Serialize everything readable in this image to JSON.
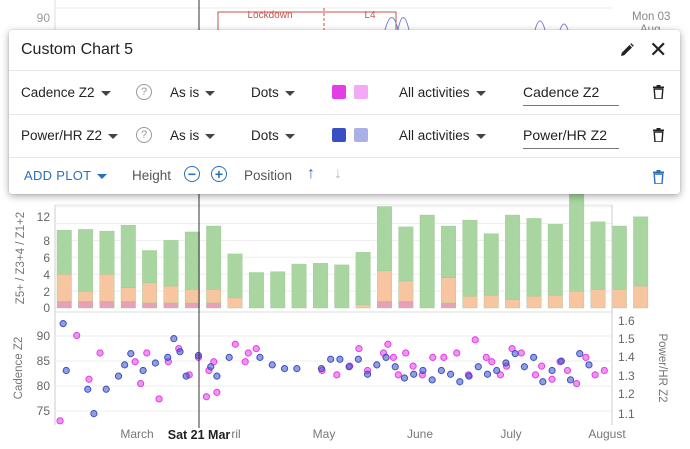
{
  "top_chart": {
    "y_ticks": [
      "90"
    ],
    "annotations": [
      "Lockdown",
      "L4"
    ],
    "date_label": [
      "Mon 03",
      "Aug"
    ]
  },
  "bar_chart": {
    "y_axis_label": "Z5+ / Z3+4 / Z1+2",
    "y_ticks": [
      "0",
      "2",
      "4",
      "6",
      "8",
      "10",
      "12"
    ]
  },
  "dot_chart": {
    "left_axis_label": "Cadence Z2",
    "left_ticks": [
      "75",
      "80",
      "85",
      "90"
    ],
    "right_axis_label": "Power/HR Z2",
    "right_ticks": [
      "1.1",
      "1.2",
      "1.3",
      "1.4",
      "1.5",
      "1.6"
    ]
  },
  "x_axis": {
    "labels": [
      "March",
      "ril",
      "May",
      "June",
      "July",
      "August"
    ],
    "cursor_label": "Sat 21 Mar"
  },
  "panel": {
    "title": "Custom Chart 5",
    "edit_icon": "pencil-icon",
    "close_icon": "close-icon",
    "rows": [
      {
        "metric": "Cadence Z2",
        "transform": "As is",
        "style": "Dots",
        "color_primary": "#e23de6",
        "color_secondary": "#f4a9f6",
        "filter": "All activities",
        "name": "Cadence Z2"
      },
      {
        "metric": "Power/HR Z2",
        "transform": "As is",
        "style": "Dots",
        "color_primary": "#3a4fc4",
        "color_secondary": "#a9b0e6",
        "filter": "All activities",
        "name": "Power/HR Z2"
      }
    ],
    "footer": {
      "add_plot": "ADD PLOT",
      "height": "Height",
      "position": "Position"
    }
  },
  "chart_data": [
    {
      "type": "bar",
      "stacked": true,
      "ylim": [
        0,
        14
      ],
      "series": [
        {
          "name": "Z5+",
          "color": "#e8a0b8",
          "values": [
            0.8,
            0.8,
            0.8,
            0.8,
            0.6,
            0.6,
            0.6,
            0.6,
            0,
            0,
            0,
            0,
            0,
            0,
            0,
            0.8,
            0.8,
            0,
            0.6,
            0,
            0,
            0,
            0,
            0,
            0,
            0,
            0,
            0
          ]
        },
        {
          "name": "Z3+4",
          "color": "#f7c59f",
          "values": [
            3.2,
            1.2,
            3.2,
            1.6,
            2.4,
            2.0,
            1.6,
            1.6,
            1.2,
            0,
            0,
            0,
            0,
            0,
            0.4,
            3.6,
            2.4,
            0,
            3.0,
            1.4,
            1.5,
            1.0,
            1.4,
            1.5,
            2.0,
            2.2,
            2.2,
            2.6
          ]
        },
        {
          "name": "Z1+2",
          "color": "#a8d5a0",
          "values": [
            5.2,
            7.3,
            5.1,
            7.4,
            3.8,
            5.4,
            6.8,
            7.5,
            5.2,
            4.2,
            4.3,
            5.2,
            5.3,
            5.1,
            6.2,
            7.6,
            6.4,
            11.0,
            6.1,
            9.0,
            7.3,
            10.0,
            9.2,
            8.4,
            12.0,
            8.0,
            7.5,
            8.2
          ]
        }
      ]
    },
    {
      "type": "scatter",
      "series": [
        {
          "name": "Cadence Z2",
          "color": "#e23de6",
          "ylim": [
            73,
            97
          ],
          "points": [
            [
              0.05,
              73.5
            ],
            [
              0.32,
              93
            ],
            [
              0.7,
              89
            ],
            [
              0.52,
              83
            ],
            [
              1.27,
              87
            ],
            [
              1.36,
              82
            ],
            [
              1.46,
              89
            ],
            [
              1.66,
              78.5
            ],
            [
              1.81,
              87
            ],
            [
              1.98,
              90
            ],
            [
              2.15,
              84
            ],
            [
              2.3,
              88
            ],
            [
              2.43,
              79
            ],
            [
              2.47,
              85
            ],
            [
              2.55,
              87
            ],
            [
              2.6,
              80
            ],
            [
              2.9,
              91
            ],
            [
              3.06,
              87
            ],
            [
              3.11,
              89
            ],
            [
              3.24,
              90
            ],
            [
              4.31,
              85
            ],
            [
              4.55,
              84
            ],
            [
              4.76,
              86
            ],
            [
              4.91,
              90
            ],
            [
              5.05,
              85
            ],
            [
              5.31,
              89
            ],
            [
              5.38,
              91
            ],
            [
              5.47,
              88
            ],
            [
              5.55,
              84
            ],
            [
              5.67,
              89
            ],
            [
              5.79,
              86
            ],
            [
              5.94,
              84
            ],
            [
              6.11,
              88
            ],
            [
              6.29,
              88
            ],
            [
              6.5,
              89
            ],
            [
              6.69,
              84
            ],
            [
              6.8,
              92
            ],
            [
              6.98,
              88
            ],
            [
              7.07,
              87
            ],
            [
              7.21,
              84
            ],
            [
              7.31,
              86
            ],
            [
              7.4,
              90
            ],
            [
              7.55,
              89
            ],
            [
              7.78,
              84
            ],
            [
              7.88,
              86
            ],
            [
              8.05,
              83
            ],
            [
              8.18,
              87
            ],
            [
              8.3,
              85
            ],
            [
              8.45,
              82
            ],
            [
              8.6,
              88
            ],
            [
              8.75,
              84
            ],
            [
              8.9,
              85
            ]
          ]
        },
        {
          "name": "Power/HR Z2",
          "color": "#3a4fc4",
          "ylim": [
            1.07,
            1.63
          ],
          "points": [
            [
              0.1,
              1.6
            ],
            [
              0.15,
              1.35
            ],
            [
              0.5,
              1.25
            ],
            [
              0.6,
              1.12
            ],
            [
              0.8,
              1.25
            ],
            [
              1.0,
              1.32
            ],
            [
              1.1,
              1.38
            ],
            [
              1.2,
              1.44
            ],
            [
              1.4,
              1.35
            ],
            [
              1.6,
              1.39
            ],
            [
              1.8,
              1.42
            ],
            [
              1.9,
              1.52
            ],
            [
              2.0,
              1.45
            ],
            [
              2.1,
              1.32
            ],
            [
              2.3,
              1.43
            ],
            [
              2.5,
              1.37
            ],
            [
              2.6,
              1.32
            ],
            [
              2.8,
              1.42
            ],
            [
              3.3,
              1.42
            ],
            [
              3.5,
              1.38
            ],
            [
              3.7,
              1.36
            ],
            [
              3.9,
              1.36
            ],
            [
              4.3,
              1.36
            ],
            [
              4.45,
              1.41
            ],
            [
              4.6,
              1.41
            ],
            [
              4.75,
              1.37
            ],
            [
              4.9,
              1.41
            ],
            [
              5.05,
              1.33
            ],
            [
              5.2,
              1.38
            ],
            [
              5.35,
              1.42
            ],
            [
              5.5,
              1.37
            ],
            [
              5.65,
              1.31
            ],
            [
              5.8,
              1.33
            ],
            [
              5.95,
              1.35
            ],
            [
              6.1,
              1.3
            ],
            [
              6.25,
              1.35
            ],
            [
              6.4,
              1.33
            ],
            [
              6.55,
              1.29
            ],
            [
              6.7,
              1.32
            ],
            [
              6.85,
              1.37
            ],
            [
              7.0,
              1.33
            ],
            [
              7.15,
              1.35
            ],
            [
              7.3,
              1.39
            ],
            [
              7.45,
              1.44
            ],
            [
              7.6,
              1.37
            ],
            [
              7.75,
              1.42
            ],
            [
              7.9,
              1.29
            ],
            [
              8.05,
              1.35
            ],
            [
              8.2,
              1.4
            ],
            [
              8.35,
              1.3
            ],
            [
              8.5,
              1.44
            ],
            [
              8.65,
              1.38
            ]
          ]
        }
      ]
    }
  ]
}
